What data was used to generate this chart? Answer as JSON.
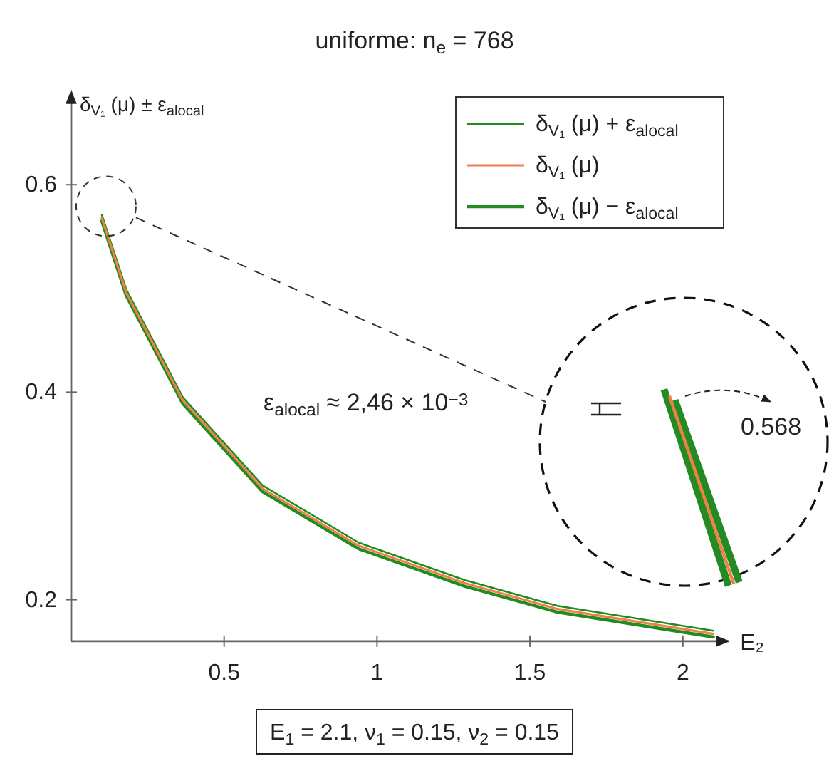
{
  "chart_data": {
    "type": "line",
    "title": "uniforme: n$_{e}$ = 768",
    "xlabel": "E₂",
    "ylabel": "δ$_{V₁}$ (μ) ± ε$_{alocal}$",
    "x": [
      0.1,
      0.18,
      0.365,
      0.626,
      0.94,
      1.286,
      1.59,
      2.1
    ],
    "series": [
      {
        "name": "δ$_{V₁}$ (μ) + ε$_{alocal}$",
        "color": "#228b22",
        "values": [
          0.571,
          0.499,
          0.395,
          0.31,
          0.255,
          0.219,
          0.194,
          0.17
        ]
      },
      {
        "name": "δ$_{V₁}$ (μ)",
        "color": "#f0804a",
        "values": [
          0.568,
          0.496,
          0.392,
          0.307,
          0.252,
          0.216,
          0.191,
          0.167
        ]
      },
      {
        "name": "δ$_{V₁}$ (μ) − ε$_{alocal}$",
        "color": "#228b22",
        "values": [
          0.565,
          0.493,
          0.389,
          0.304,
          0.249,
          0.213,
          0.188,
          0.164
        ]
      }
    ],
    "xlim": [
      0,
      2.15
    ],
    "ylim": [
      0.16,
      0.69
    ],
    "xticks": [
      0.5,
      1,
      1.5,
      2
    ],
    "yticks": [
      0.2,
      0.4,
      0.6
    ],
    "legend": "top right",
    "grid": false,
    "annotations": [
      "ε$_{alocal}$ ≈ 2,46 × 10$^{−3}$",
      "0.568",
      "E$_{1}$ = 2.1, ν$_{1}$ = 0.15, ν$_{2}$ = 0.15"
    ]
  }
}
